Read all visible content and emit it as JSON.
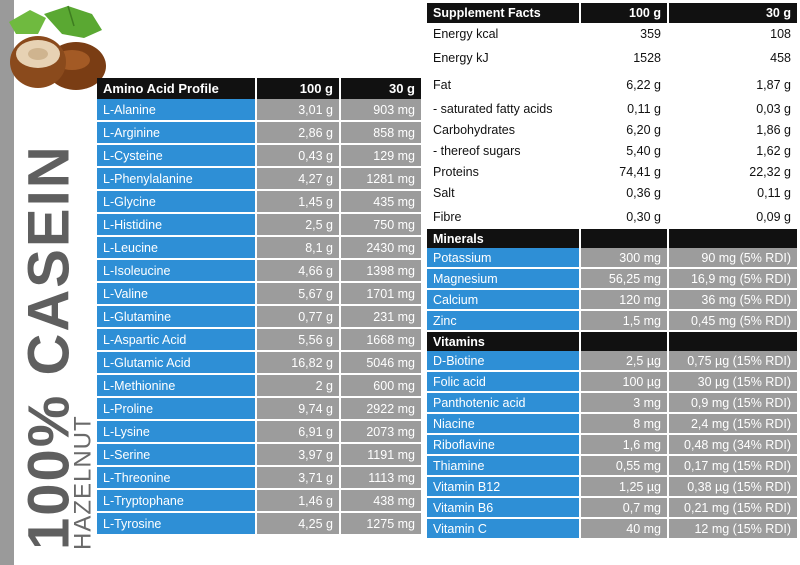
{
  "brand": {
    "main": "100% CASEIN",
    "sub": "HAZELNUT"
  },
  "amino": {
    "headers": [
      "Amino Acid Profile",
      "100 g",
      "30 g"
    ],
    "rows": [
      [
        "L-Alanine",
        "3,01 g",
        "903 mg"
      ],
      [
        "L-Arginine",
        "2,86 g",
        "858 mg"
      ],
      [
        "L-Cysteine",
        "0,43 g",
        "129 mg"
      ],
      [
        "L-Phenylalanine",
        "4,27 g",
        "1281 mg"
      ],
      [
        "L-Glycine",
        "1,45 g",
        "435 mg"
      ],
      [
        "L-Histidine",
        "2,5 g",
        "750 mg"
      ],
      [
        "L-Leucine",
        "8,1 g",
        "2430 mg"
      ],
      [
        "L-Isoleucine",
        "4,66 g",
        "1398 mg"
      ],
      [
        "L-Valine",
        "5,67 g",
        "1701 mg"
      ],
      [
        "L-Glutamine",
        "0,77 g",
        "231 mg"
      ],
      [
        "L-Aspartic Acid",
        "5,56 g",
        "1668 mg"
      ],
      [
        "L-Glutamic Acid",
        "16,82 g",
        "5046 mg"
      ],
      [
        "L-Methionine",
        "2 g",
        "600 mg"
      ],
      [
        "L-Proline",
        "9,74 g",
        "2922 mg"
      ],
      [
        "L-Lysine",
        "6,91 g",
        "2073 mg"
      ],
      [
        "L-Serine",
        "3,97 g",
        "1191 mg"
      ],
      [
        "L-Threonine",
        "3,71 g",
        "1113 mg"
      ],
      [
        "L-Tryptophane",
        "1,46 g",
        "438 mg"
      ],
      [
        "L-Tyrosine",
        "4,25 g",
        "1275 mg"
      ]
    ]
  },
  "supplement": {
    "headers": [
      "Supplement Facts",
      "100 g",
      "30 g"
    ],
    "rows": [
      [
        "Energy  kcal",
        "359",
        "108"
      ],
      [
        "Energy  kJ",
        "1528",
        "458"
      ],
      [
        "Fat",
        "6,22 g",
        "1,87 g"
      ],
      [
        "- saturated fatty acids",
        "0,11 g",
        "0,03 g"
      ],
      [
        "Carbohydrates",
        "6,20 g",
        "1,86 g"
      ],
      [
        "- thereof sugars",
        "5,40 g",
        "1,62 g"
      ],
      [
        "Proteins",
        "74,41 g",
        "22,32 g"
      ],
      [
        "Salt",
        "0,36 g",
        "0,11 g"
      ],
      [
        "Fibre",
        "0,30 g",
        "0,09 g"
      ]
    ]
  },
  "minerals": {
    "title": "Minerals",
    "rows": [
      [
        "Potassium",
        "300 mg",
        "90 mg (5% RDI)"
      ],
      [
        "Magnesium",
        "56,25 mg",
        "16,9 mg (5% RDI)"
      ],
      [
        "Calcium",
        "120 mg",
        "36 mg (5% RDI)"
      ],
      [
        "Zinc",
        "1,5 mg",
        "0,45 mg (5% RDI)"
      ]
    ]
  },
  "vitamins": {
    "title": "Vitamins",
    "rows": [
      [
        "D-Biotine",
        "2,5 µg",
        "0,75 µg (15% RDI)"
      ],
      [
        "Folic acid",
        "100 µg",
        "30 µg (15% RDI)"
      ],
      [
        "Panthotenic acid",
        "3 mg",
        "0,9 mg (15% RDI)"
      ],
      [
        "Niacine",
        "8 mg",
        "2,4 mg (15% RDI)"
      ],
      [
        "Riboflavine",
        "1,6 mg",
        "0,48 mg (34% RDI)"
      ],
      [
        "Thiamine",
        "0,55 mg",
        "0,17 mg (15% RDI)"
      ],
      [
        "Vitamin B12",
        "1,25 µg",
        "0,38 µg (15% RDI)"
      ],
      [
        "Vitamin B6",
        "0,7 mg",
        "0,21 mg (15% RDI)"
      ],
      [
        "Vitamin C",
        "40 mg",
        "12 mg (15% RDI)"
      ]
    ]
  },
  "colors": {
    "blue": "#2e8fd6",
    "gray": "#9c9c9c",
    "black": "#111111"
  },
  "icons": {
    "hazelnut": "hazelnut-icon"
  }
}
